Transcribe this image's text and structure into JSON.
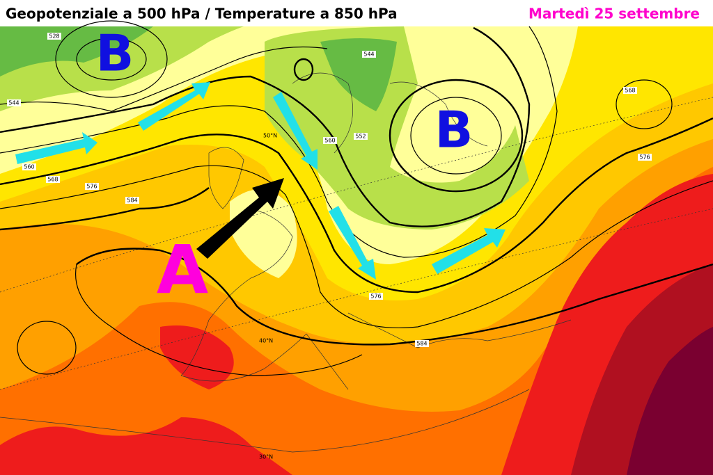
{
  "header": {
    "title": "Geopotenziale a 500 hPa / Temperature a 850 hPa",
    "date": "Martedì 25 settembre"
  },
  "map": {
    "pressure_centers": [
      "B",
      "B",
      "A"
    ],
    "contour_labels": [
      "528",
      "544",
      "560",
      "568",
      "576",
      "584",
      "544",
      "552",
      "560",
      "576",
      "568",
      "576",
      "584"
    ],
    "latitude_labels": [
      "50°N",
      "40°N",
      "30°N"
    ]
  }
}
